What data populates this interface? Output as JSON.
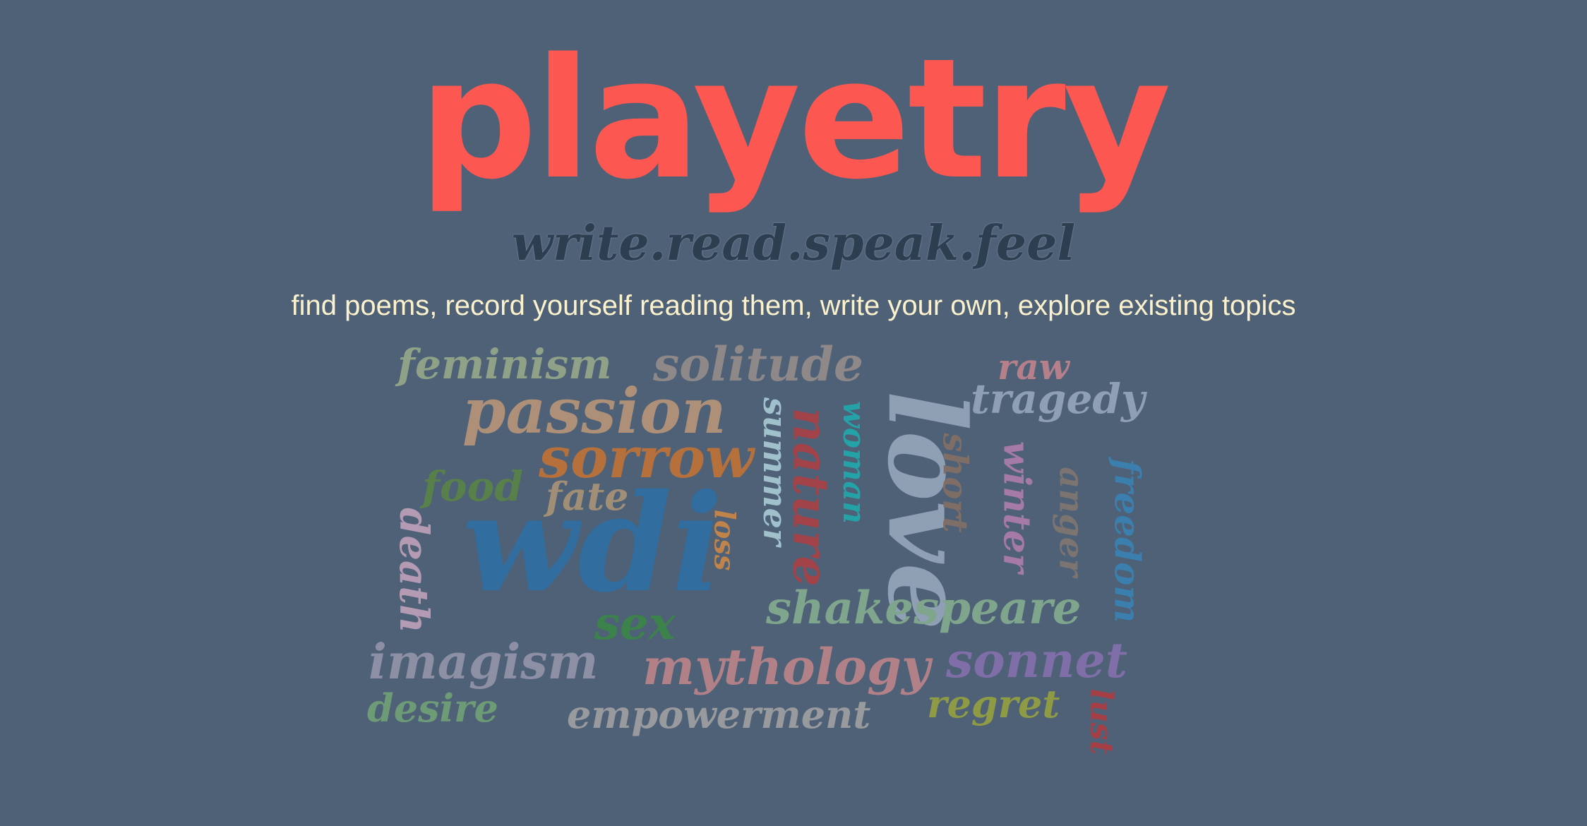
{
  "header": {
    "logo": "playetry",
    "tagline": "write.read.speak.feel",
    "subtitle": "find poems, record yourself reading them, write your own, explore existing topics"
  },
  "colors": {
    "background": "#4e6177",
    "logo": "#fc5750",
    "tagline": "#2c3e50",
    "subtitle": "#fbf2cd"
  },
  "word_cloud": {
    "feminism": "feminism",
    "solitude": "solitude",
    "raw": "raw",
    "tragedy": "tragedy",
    "passion": "passion",
    "love": "love",
    "sorrow": "sorrow",
    "summer": "summer",
    "nature": "nature",
    "woman": "woman",
    "short": "short",
    "winter": "winter",
    "anger": "anger",
    "freedom": "freedom",
    "food": "food",
    "fate": "fate",
    "wdi": "wdi",
    "loss": "loss",
    "death": "death",
    "shakespeare": "shakespeare",
    "sex": "sex",
    "imagism": "imagism",
    "mythology": "mythology",
    "sonnet": "sonnet",
    "desire": "desire",
    "regret": "regret",
    "empowerment": "empowerment",
    "lust": "lust"
  }
}
